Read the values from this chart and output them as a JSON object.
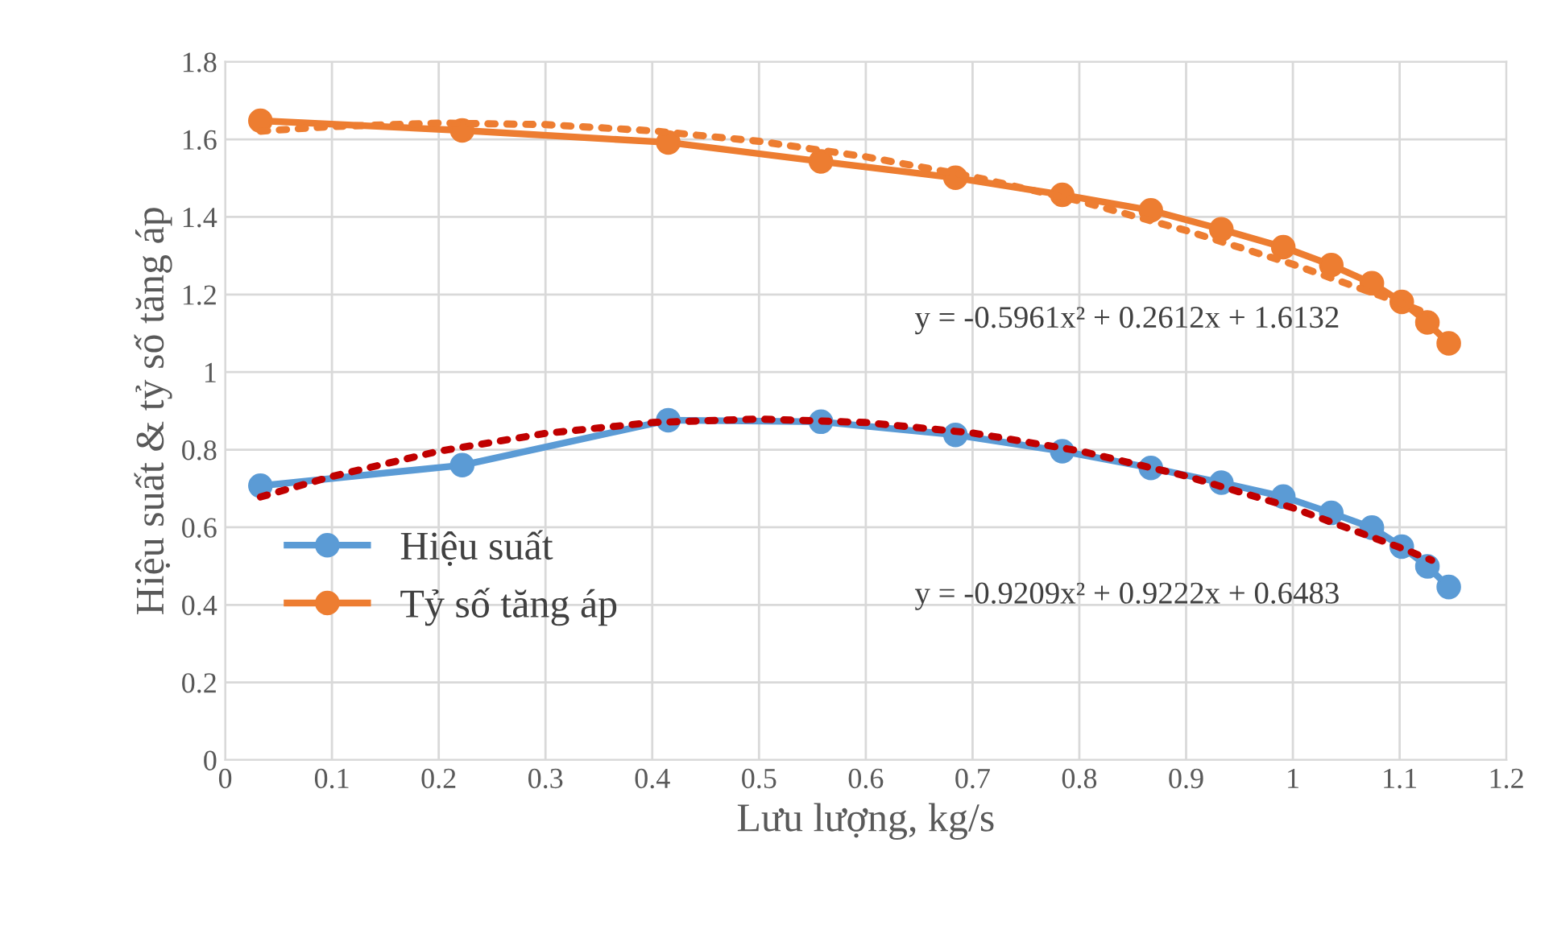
{
  "chart_data": {
    "type": "line",
    "xlabel": "Lưu lượng, kg/s",
    "ylabel": "Hiệu suất & tỷ số tăng áp",
    "xlim": [
      0,
      1.2
    ],
    "xticks": [
      0,
      0.1,
      0.2,
      0.3,
      0.4,
      0.5,
      0.6,
      0.7,
      0.8,
      0.9,
      1,
      1.1,
      1.2
    ],
    "ylim": [
      0,
      1.8
    ],
    "yticks": [
      0,
      0.2,
      0.4,
      0.6,
      0.8,
      1,
      1.2,
      1.4,
      1.6,
      1.8
    ],
    "grid": true,
    "legend": "left",
    "marker": "circle",
    "x": [
      0.033,
      0.222,
      0.415,
      0.558,
      0.684,
      0.784,
      0.867,
      0.933,
      0.991,
      1.036,
      1.074,
      1.102,
      1.126,
      1.146
    ],
    "series": [
      {
        "name": "Hiệu suất",
        "color": "#5b9bd5",
        "values": [
          0.707,
          0.76,
          0.876,
          0.872,
          0.838,
          0.796,
          0.753,
          0.715,
          0.679,
          0.637,
          0.599,
          0.55,
          0.499,
          0.446
        ]
      },
      {
        "name": "Tỷ số tăng áp",
        "color": "#ed7d31",
        "values": [
          1.648,
          1.623,
          1.592,
          1.543,
          1.501,
          1.457,
          1.417,
          1.368,
          1.322,
          1.276,
          1.229,
          1.181,
          1.128,
          1.074
        ]
      },
      {
        "type": "line",
        "color": "#ed7d31",
        "line_style": "dotted",
        "marker": "none",
        "x": [
          0.033,
          0.1,
          0.2,
          0.3,
          0.4,
          0.5,
          0.6,
          0.7,
          0.8,
          0.9,
          1.0,
          1.1,
          1.13
        ],
        "values": [
          1.621,
          1.633,
          1.642,
          1.638,
          1.622,
          1.595,
          1.555,
          1.504,
          1.441,
          1.365,
          1.278,
          1.179,
          1.147
        ]
      },
      {
        "type": "line",
        "color": "#c00000",
        "line_style": "dotted",
        "marker": "none",
        "x": [
          0.033,
          0.1,
          0.2,
          0.3,
          0.4,
          0.5,
          0.6,
          0.7,
          0.8,
          0.9,
          1.0,
          1.1,
          1.13
        ],
        "values": [
          0.678,
          0.731,
          0.796,
          0.842,
          0.87,
          0.879,
          0.87,
          0.843,
          0.797,
          0.732,
          0.65,
          0.548,
          0.515
        ]
      }
    ],
    "annotations": [
      "y = -0.5961x² + 0.2612x + 1.6132",
      "y = -0.9209x² + 0.9222x + 0.6483"
    ]
  }
}
